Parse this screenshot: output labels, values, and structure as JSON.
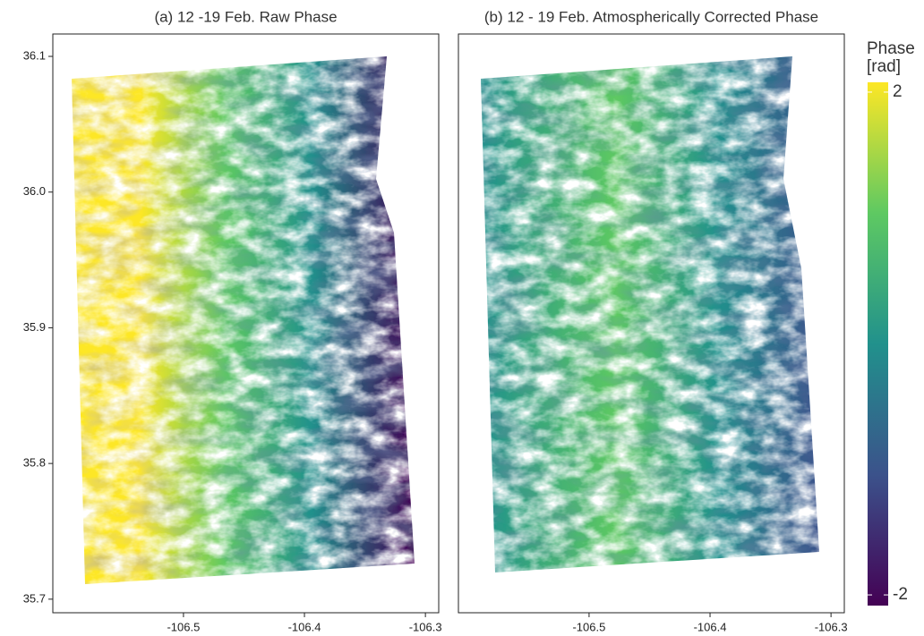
{
  "chart_data": [
    {
      "type": "raster",
      "title": "(a) 12 -19 Feb. Raw Phase",
      "xlim": [
        -106.608,
        -106.289
      ],
      "xticks": [
        -106.5,
        -106.4,
        -106.3
      ],
      "ylim": [
        35.69,
        36.1165
      ],
      "yticks": [
        {
          "value": 35.7,
          "label": "35.7"
        },
        {
          "value": 35.8,
          "label": "35.8"
        },
        {
          "value": 35.9,
          "label": "35.9"
        },
        {
          "value": 36.0,
          "label": "36.0"
        },
        {
          "value": 36.1,
          "label": "36.1"
        }
      ]
    },
    {
      "type": "raster",
      "title": "(b) 12 - 19 Feb. Atmospherically Corrected Phase",
      "xlim": [
        -106.608,
        -106.289
      ],
      "xticks": [
        -106.5,
        -106.4,
        -106.3
      ]
    },
    {
      "type": "colorbar",
      "title": [
        "Phase",
        "[rad]"
      ],
      "lim": [
        -2.085,
        2.078
      ],
      "ticks": [
        -2,
        2
      ],
      "colors": [
        "#440154",
        "#3b528b",
        "#21918c",
        "#5ec962",
        "#fde725"
      ]
    }
  ]
}
